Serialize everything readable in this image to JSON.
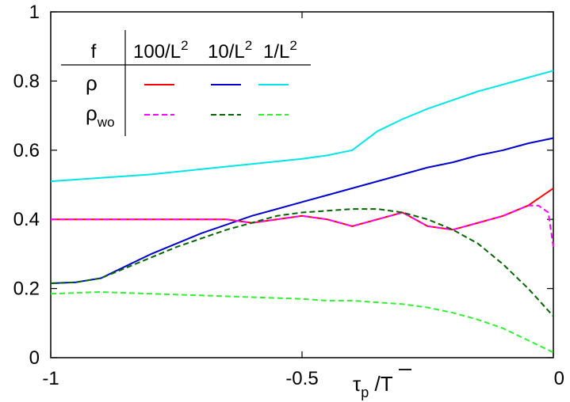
{
  "chart_data": {
    "type": "line",
    "title": "",
    "xlabel": {
      "main": "τ",
      "sub": "p",
      "rest": " /T"
    },
    "ylabel": "",
    "xlim": [
      -1,
      0
    ],
    "ylim": [
      0,
      1
    ],
    "x_ticks": [
      {
        "value": -1,
        "label": "-1"
      },
      {
        "value": -0.5,
        "label": "-0.5"
      },
      {
        "value": 0,
        "label": "0"
      }
    ],
    "y_ticks": [
      {
        "value": 0,
        "label": "0"
      },
      {
        "value": 0.2,
        "label": "0.2"
      },
      {
        "value": 0.4,
        "label": "0.4"
      },
      {
        "value": 0.6,
        "label": "0.6"
      },
      {
        "value": 0.8,
        "label": "0.8"
      },
      {
        "value": 1,
        "label": "1"
      }
    ],
    "grid": false,
    "legend": {
      "placement": "top-left",
      "header": "f",
      "columns": [
        {
          "base": "100/L",
          "sup": "2"
        },
        {
          "base": "10/L",
          "sup": "2"
        },
        {
          "base": "1/L",
          "sup": "2"
        }
      ],
      "rows": [
        {
          "base": "ρ",
          "sub": ""
        },
        {
          "base": "ρ",
          "sub": "wo"
        }
      ]
    },
    "series": [
      {
        "row": 0,
        "column": 0,
        "color": "#ff0000",
        "dash": "solid",
        "x": [
          -1,
          -0.9,
          -0.8,
          -0.75,
          -0.7,
          -0.65,
          -0.6,
          -0.55,
          -0.5,
          -0.45,
          -0.4,
          -0.35,
          -0.3,
          -0.25,
          -0.2,
          -0.15,
          -0.1,
          -0.05,
          0
        ],
        "y": [
          0.4,
          0.4,
          0.4,
          0.4,
          0.4,
          0.4,
          0.39,
          0.4,
          0.41,
          0.4,
          0.38,
          0.4,
          0.42,
          0.38,
          0.37,
          0.39,
          0.41,
          0.44,
          0.49
        ]
      },
      {
        "row": 0,
        "column": 1,
        "color": "#0000cc",
        "dash": "solid",
        "x": [
          -1,
          -0.95,
          -0.9,
          -0.85,
          -0.8,
          -0.75,
          -0.7,
          -0.65,
          -0.6,
          -0.55,
          -0.5,
          -0.45,
          -0.4,
          -0.35,
          -0.3,
          -0.25,
          -0.2,
          -0.15,
          -0.1,
          -0.05,
          0
        ],
        "y": [
          0.215,
          0.218,
          0.23,
          0.265,
          0.3,
          0.33,
          0.36,
          0.385,
          0.41,
          0.43,
          0.45,
          0.47,
          0.49,
          0.51,
          0.53,
          0.55,
          0.565,
          0.585,
          0.6,
          0.62,
          0.635
        ]
      },
      {
        "row": 0,
        "column": 2,
        "color": "#00e5e5",
        "dash": "solid",
        "x": [
          -1,
          -0.9,
          -0.8,
          -0.7,
          -0.6,
          -0.5,
          -0.45,
          -0.4,
          -0.35,
          -0.3,
          -0.25,
          -0.2,
          -0.15,
          -0.1,
          -0.05,
          0
        ],
        "y": [
          0.51,
          0.52,
          0.53,
          0.545,
          0.56,
          0.575,
          0.585,
          0.6,
          0.655,
          0.69,
          0.72,
          0.745,
          0.77,
          0.79,
          0.81,
          0.83
        ]
      },
      {
        "row": 1,
        "column": 0,
        "color": "#ff00ff",
        "dash": "dashed",
        "x": [
          -1,
          -0.9,
          -0.8,
          -0.75,
          -0.7,
          -0.65,
          -0.6,
          -0.55,
          -0.5,
          -0.45,
          -0.4,
          -0.35,
          -0.3,
          -0.25,
          -0.2,
          -0.15,
          -0.1,
          -0.05,
          -0.03,
          -0.01,
          0
        ],
        "y": [
          0.4,
          0.4,
          0.4,
          0.4,
          0.4,
          0.4,
          0.39,
          0.4,
          0.41,
          0.4,
          0.38,
          0.4,
          0.42,
          0.38,
          0.37,
          0.39,
          0.41,
          0.44,
          0.44,
          0.42,
          0.32
        ]
      },
      {
        "row": 1,
        "column": 1,
        "color": "#006400",
        "dash": "dashed",
        "x": [
          -1,
          -0.95,
          -0.9,
          -0.85,
          -0.8,
          -0.75,
          -0.7,
          -0.65,
          -0.6,
          -0.55,
          -0.5,
          -0.45,
          -0.4,
          -0.35,
          -0.3,
          -0.25,
          -0.2,
          -0.15,
          -0.1,
          -0.05,
          0
        ],
        "y": [
          0.215,
          0.218,
          0.23,
          0.26,
          0.29,
          0.32,
          0.345,
          0.37,
          0.39,
          0.41,
          0.42,
          0.425,
          0.43,
          0.43,
          0.42,
          0.4,
          0.37,
          0.33,
          0.27,
          0.2,
          0.12
        ]
      },
      {
        "row": 1,
        "column": 2,
        "color": "#33ee33",
        "dash": "dashed",
        "x": [
          -1,
          -0.9,
          -0.8,
          -0.7,
          -0.6,
          -0.5,
          -0.45,
          -0.4,
          -0.35,
          -0.3,
          -0.25,
          -0.2,
          -0.15,
          -0.1,
          -0.05,
          0
        ],
        "y": [
          0.185,
          0.19,
          0.185,
          0.18,
          0.175,
          0.17,
          0.165,
          0.165,
          0.16,
          0.155,
          0.145,
          0.13,
          0.11,
          0.085,
          0.05,
          0.015
        ]
      }
    ]
  }
}
